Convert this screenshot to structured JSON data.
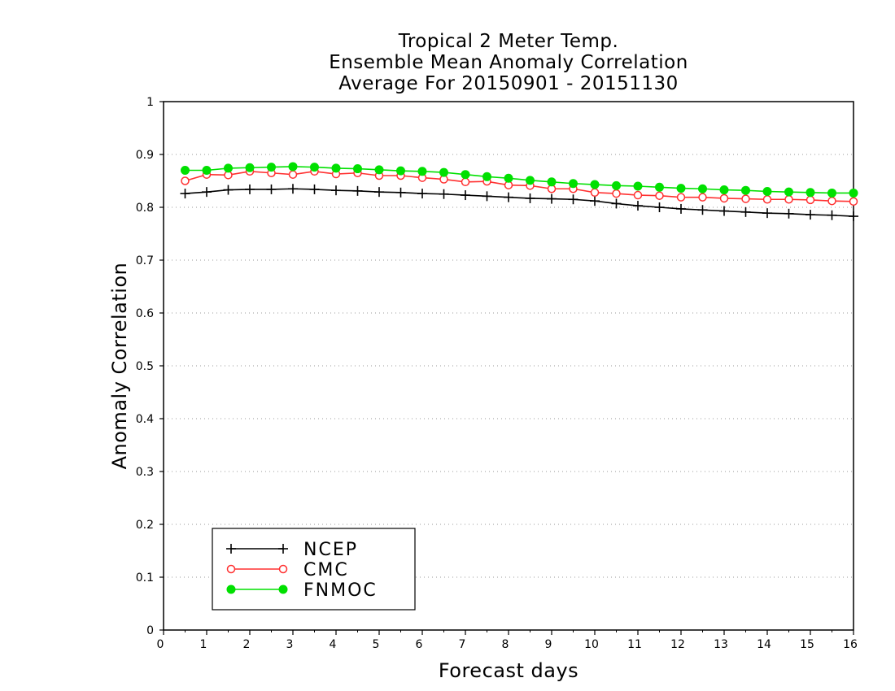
{
  "chart_data": {
    "type": "line",
    "title_lines": [
      "Tropical 2 Meter Temp.",
      "Ensemble Mean Anomaly Correlation",
      "Average For 20150901 - 20151130"
    ],
    "xlabel": "Forecast days",
    "ylabel": "Anomaly Correlation",
    "xlim": [
      0,
      16
    ],
    "ylim": [
      0,
      1
    ],
    "x_ticks": [
      "0",
      "1",
      "2",
      "3",
      "4",
      "5",
      "6",
      "7",
      "8",
      "9",
      "10",
      "11",
      "12",
      "13",
      "14",
      "15",
      "16"
    ],
    "y_ticks": [
      "0",
      "0.1",
      "0.2",
      "0.3",
      "0.4",
      "0.5",
      "0.6",
      "0.7",
      "0.8",
      "0.9",
      "1"
    ],
    "grid": "horizontal dotted",
    "legend_position": "bottom-left",
    "x": [
      0.5,
      1,
      1.5,
      2,
      2.5,
      3,
      3.5,
      4,
      4.5,
      5,
      5.5,
      6,
      6.5,
      7,
      7.5,
      8,
      8.5,
      9,
      9.5,
      10,
      10.5,
      11,
      11.5,
      12,
      12.5,
      13,
      13.5,
      14,
      14.5,
      15,
      15.5,
      16
    ],
    "series": [
      {
        "name": "NCEP",
        "color": "#000000",
        "marker": "plus",
        "values": [
          0.826,
          0.829,
          0.833,
          0.834,
          0.834,
          0.835,
          0.834,
          0.832,
          0.831,
          0.829,
          0.828,
          0.826,
          0.825,
          0.823,
          0.821,
          0.819,
          0.817,
          0.816,
          0.815,
          0.812,
          0.807,
          0.803,
          0.8,
          0.797,
          0.795,
          0.793,
          0.791,
          0.789,
          0.788,
          0.786,
          0.785,
          0.783
        ]
      },
      {
        "name": "CMC",
        "color": "#ff3030",
        "marker": "open-circle",
        "values": [
          0.85,
          0.862,
          0.861,
          0.868,
          0.865,
          0.862,
          0.868,
          0.863,
          0.865,
          0.86,
          0.86,
          0.856,
          0.853,
          0.848,
          0.849,
          0.842,
          0.841,
          0.835,
          0.835,
          0.828,
          0.826,
          0.823,
          0.822,
          0.819,
          0.819,
          0.817,
          0.816,
          0.815,
          0.815,
          0.814,
          0.812,
          0.811
        ]
      },
      {
        "name": "FNMOC",
        "color": "#00e000",
        "marker": "filled-circle",
        "values": [
          0.87,
          0.87,
          0.874,
          0.875,
          0.876,
          0.877,
          0.876,
          0.874,
          0.873,
          0.871,
          0.869,
          0.868,
          0.866,
          0.862,
          0.858,
          0.855,
          0.851,
          0.848,
          0.845,
          0.843,
          0.841,
          0.84,
          0.838,
          0.836,
          0.835,
          0.833,
          0.832,
          0.83,
          0.829,
          0.828,
          0.827,
          0.827
        ]
      }
    ]
  }
}
